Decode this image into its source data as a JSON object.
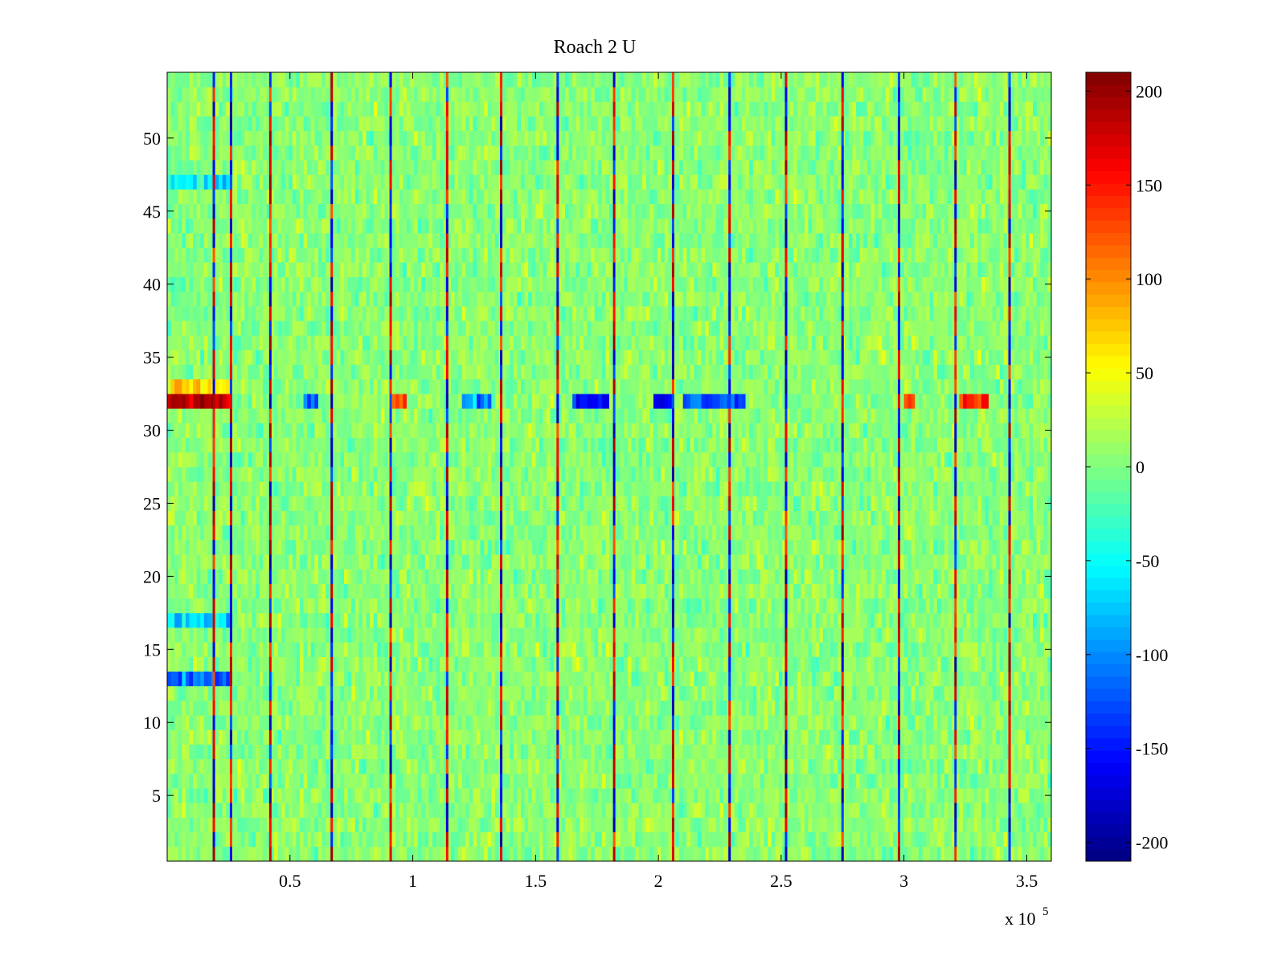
{
  "chart_data": {
    "type": "heatmap",
    "title": "Roach 2 U",
    "xlabel": "",
    "ylabel": "",
    "x_multiplier_label": "x 10",
    "x_multiplier_exponent": "5",
    "xlim": [
      0,
      3.6
    ],
    "ylim": [
      0.5,
      54.5
    ],
    "x_ticks": [
      0.5,
      1,
      1.5,
      2,
      2.5,
      3,
      3.5
    ],
    "x_tick_labels": [
      "0.5",
      "1",
      "1.5",
      "2",
      "2.5",
      "3",
      "3.5"
    ],
    "y_ticks": [
      5,
      10,
      15,
      20,
      25,
      30,
      35,
      40,
      45,
      50
    ],
    "y_tick_labels": [
      "5",
      "10",
      "15",
      "20",
      "25",
      "30",
      "35",
      "40",
      "45",
      "50"
    ],
    "rows": 54,
    "colorbar": {
      "colormap": "jet",
      "clim": [
        -210,
        210
      ],
      "ticks": [
        200,
        150,
        100,
        50,
        0,
        -50,
        -100,
        -150,
        -200
      ],
      "tick_labels": [
        "200",
        "150",
        "100",
        "50",
        "0",
        "-50",
        "-100",
        "-150",
        "-200"
      ]
    },
    "vertical_stripes_x": [
      0.19,
      0.26,
      0.42,
      0.67,
      0.91,
      1.14,
      1.36,
      1.59,
      1.82,
      2.06,
      2.29,
      2.52,
      2.75,
      2.98,
      3.21,
      3.43
    ],
    "row_features": [
      {
        "row": 32,
        "x_from": 0,
        "x_to": 0.26,
        "value": 190
      },
      {
        "row": 32,
        "x_from": 0.92,
        "x_to": 0.98,
        "value": 120
      },
      {
        "row": 32,
        "x_from": 0.55,
        "x_to": 0.62,
        "value": -100
      },
      {
        "row": 32,
        "x_from": 1.2,
        "x_to": 1.32,
        "value": -90
      },
      {
        "row": 32,
        "x_from": 1.65,
        "x_to": 1.8,
        "value": -150
      },
      {
        "row": 32,
        "x_from": 1.98,
        "x_to": 2.06,
        "value": -160
      },
      {
        "row": 32,
        "x_from": 2.1,
        "x_to": 2.35,
        "value": -120
      },
      {
        "row": 32,
        "x_from": 3.0,
        "x_to": 3.05,
        "value": 140
      },
      {
        "row": 32,
        "x_from": 3.22,
        "x_to": 3.35,
        "value": 140
      },
      {
        "row": 33,
        "x_from": 0,
        "x_to": 0.26,
        "value": 60
      },
      {
        "row": 13,
        "x_from": 0,
        "x_to": 0.26,
        "value": -110
      },
      {
        "row": 47,
        "x_from": 0,
        "x_to": 0.26,
        "value": -60
      },
      {
        "row": 17,
        "x_from": 0,
        "x_to": 0.26,
        "value": -70
      }
    ]
  }
}
